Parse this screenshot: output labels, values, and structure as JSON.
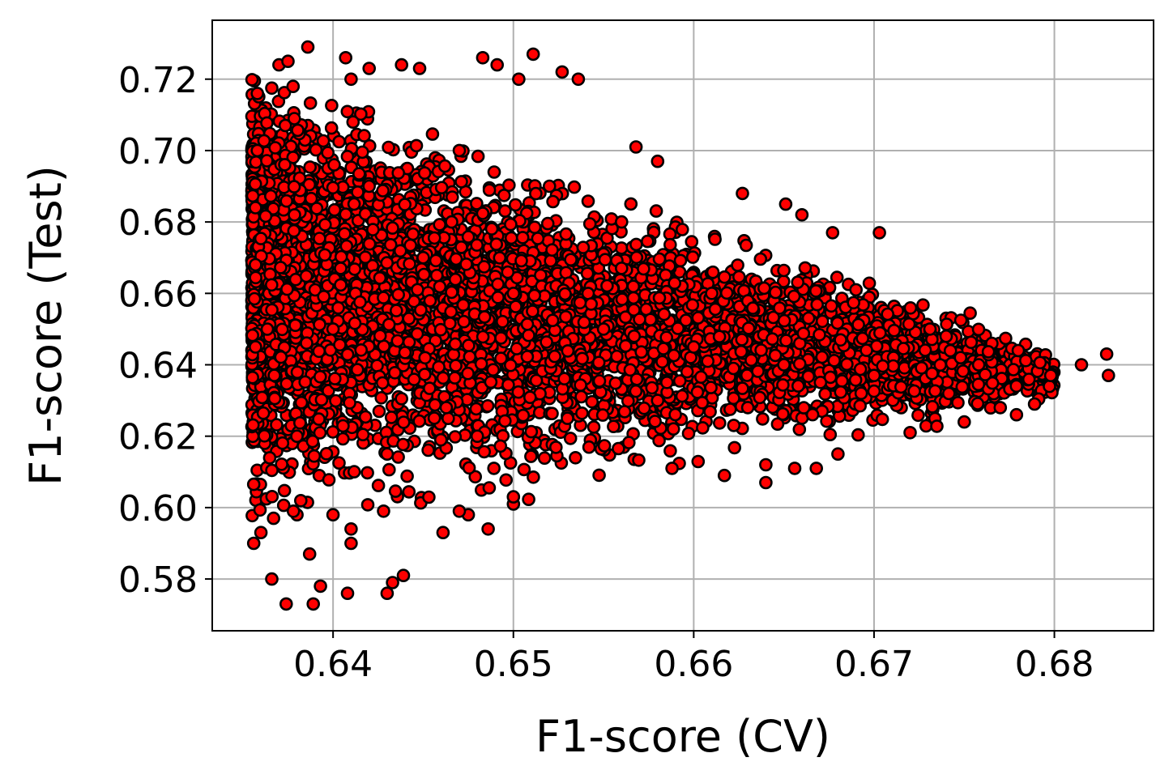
{
  "chart_data": {
    "type": "scatter",
    "xlabel": "F1-score (CV)",
    "ylabel": "F1-score (Test)",
    "xlim": [
      0.6333,
      0.6855
    ],
    "ylim": [
      0.5655,
      0.7365
    ],
    "xticks": [
      0.64,
      0.65,
      0.66,
      0.67,
      0.68
    ],
    "xtick_labels": [
      "0.64",
      "0.65",
      "0.66",
      "0.67",
      "0.68"
    ],
    "yticks": [
      0.58,
      0.6,
      0.62,
      0.64,
      0.66,
      0.68,
      0.7,
      0.72
    ],
    "ytick_labels": [
      "0.58",
      "0.60",
      "0.62",
      "0.64",
      "0.66",
      "0.68",
      "0.70",
      "0.72"
    ],
    "grid": true,
    "marker_color": "#ff0000",
    "marker_edge_color": "#000000",
    "point_count_estimate": 6000,
    "series": [
      {
        "values": [
          [
            0.6356,
            0.59
          ],
          [
            0.636,
            0.593
          ],
          [
            0.6366,
            0.58
          ],
          [
            0.6374,
            0.573
          ],
          [
            0.6389,
            0.573
          ],
          [
            0.6393,
            0.578
          ],
          [
            0.6408,
            0.576
          ],
          [
            0.643,
            0.576
          ],
          [
            0.6433,
            0.579
          ],
          [
            0.6439,
            0.581
          ],
          [
            0.6387,
            0.587
          ],
          [
            0.641,
            0.59
          ],
          [
            0.641,
            0.594
          ],
          [
            0.6486,
            0.594
          ],
          [
            0.6461,
            0.593
          ],
          [
            0.6358,
            0.716
          ],
          [
            0.637,
            0.724
          ],
          [
            0.6375,
            0.725
          ],
          [
            0.6386,
            0.729
          ],
          [
            0.6407,
            0.726
          ],
          [
            0.642,
            0.723
          ],
          [
            0.6438,
            0.724
          ],
          [
            0.6448,
            0.723
          ],
          [
            0.6483,
            0.726
          ],
          [
            0.6491,
            0.724
          ],
          [
            0.6511,
            0.727
          ],
          [
            0.6527,
            0.722
          ],
          [
            0.6536,
            0.72
          ],
          [
            0.6503,
            0.72
          ],
          [
            0.641,
            0.72
          ],
          [
            0.658,
            0.697
          ],
          [
            0.6568,
            0.701
          ],
          [
            0.6627,
            0.688
          ],
          [
            0.6651,
            0.685
          ],
          [
            0.666,
            0.682
          ],
          [
            0.6677,
            0.677
          ],
          [
            0.6703,
            0.677
          ],
          [
            0.669,
            0.661
          ],
          [
            0.6731,
            0.65
          ],
          [
            0.674,
            0.648
          ],
          [
            0.6748,
            0.642
          ],
          [
            0.6758,
            0.64
          ],
          [
            0.678,
            0.644
          ],
          [
            0.6798,
            0.637
          ],
          [
            0.6815,
            0.64
          ],
          [
            0.6829,
            0.643
          ],
          [
            0.683,
            0.637
          ],
          [
            0.6789,
            0.629
          ],
          [
            0.6779,
            0.626
          ],
          [
            0.677,
            0.628
          ],
          [
            0.675,
            0.624
          ],
          [
            0.672,
            0.621
          ],
          [
            0.668,
            0.615
          ],
          [
            0.6668,
            0.611
          ],
          [
            0.6656,
            0.611
          ],
          [
            0.664,
            0.612
          ],
          [
            0.664,
            0.607
          ],
          [
            0.6617,
            0.609
          ],
          [
            0.6588,
            0.611
          ],
          [
            0.65,
            0.601
          ],
          [
            0.65,
            0.603
          ],
          [
            0.6475,
            0.598
          ],
          [
            0.647,
            0.599
          ],
          [
            0.6428,
            0.599
          ],
          [
            0.64,
            0.598
          ],
          [
            0.638,
            0.598
          ],
          [
            0.6378,
            0.599
          ],
          [
            0.6367,
            0.597
          ],
          [
            0.6357,
            0.645
          ],
          [
            0.6357,
            0.668
          ],
          [
            0.6357,
            0.684
          ],
          [
            0.6358,
            0.7
          ],
          [
            0.64,
            0.65
          ],
          [
            0.645,
            0.67
          ],
          [
            0.65,
            0.66
          ],
          [
            0.655,
            0.65
          ],
          [
            0.66,
            0.645
          ],
          [
            0.665,
            0.64
          ],
          [
            0.67,
            0.637
          ],
          [
            0.642,
            0.69
          ],
          [
            0.647,
            0.7
          ],
          [
            0.652,
            0.69
          ],
          [
            0.656,
            0.68
          ],
          [
            0.661,
            0.66
          ],
          [
            0.638,
            0.62
          ],
          [
            0.643,
            0.615
          ],
          [
            0.648,
            0.62
          ],
          [
            0.653,
            0.625
          ],
          [
            0.658,
            0.63
          ],
          [
            0.663,
            0.628
          ]
        ]
      }
    ]
  }
}
